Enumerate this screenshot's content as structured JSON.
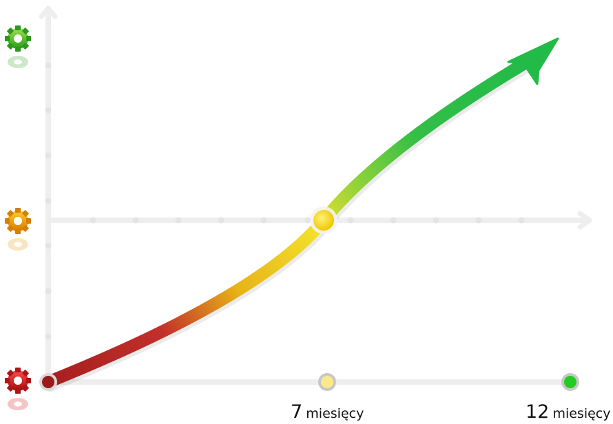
{
  "milestones": [
    {
      "number": "7",
      "unit": "miesięcy"
    },
    {
      "number": "12",
      "unit": "miesięcy"
    }
  ],
  "colors": {
    "start_red": "#a32020",
    "mid_yellow": "#f5d800",
    "end_green": "#22bb44",
    "axis_grey": "#eeeeee"
  },
  "icons": [
    "gear-icon-green",
    "gear-icon-orange",
    "gear-icon-red"
  ]
}
